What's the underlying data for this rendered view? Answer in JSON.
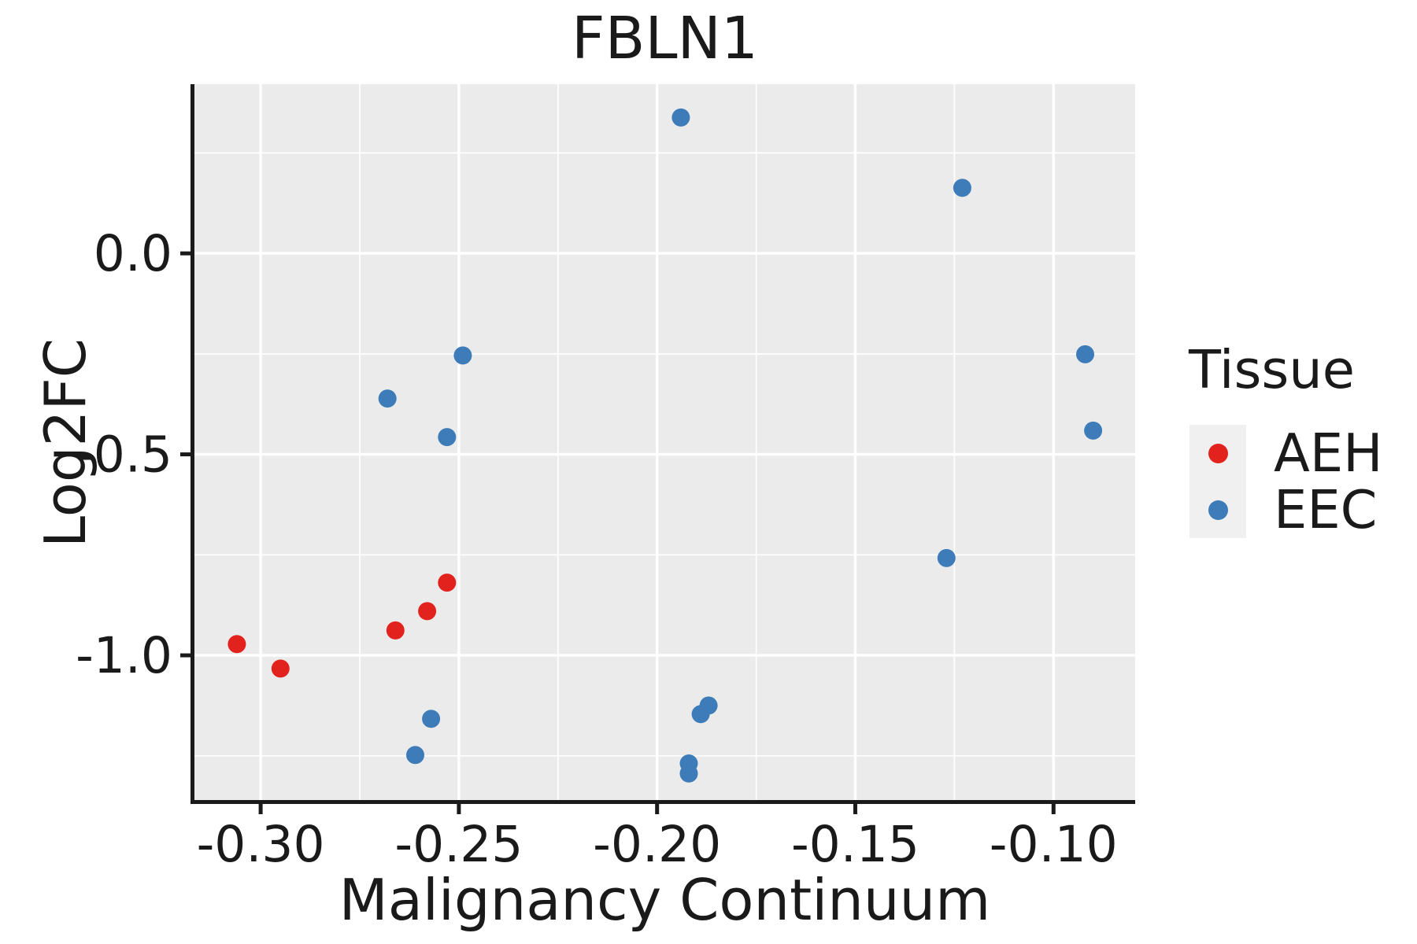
{
  "chart_data": {
    "type": "scatter",
    "title": "FBLN1",
    "xlabel": "Malignancy Continuum",
    "ylabel": "Log2FC",
    "xlim": [
      -0.3167,
      -0.0794
    ],
    "ylim": [
      -1.36,
      0.421
    ],
    "x_ticks": {
      "values": [
        -0.3,
        -0.25,
        -0.2,
        -0.15,
        -0.1
      ],
      "labels": [
        "-0.30",
        "-0.25",
        "-0.20",
        "-0.15",
        "-0.10"
      ]
    },
    "y_ticks": {
      "values": [
        0.0,
        -0.5,
        -1.0
      ],
      "labels": [
        "0.0",
        "-0.5",
        "-1.0"
      ]
    },
    "x_minor_ticks": [
      -0.275,
      -0.225,
      -0.175,
      -0.125
    ],
    "y_minor_ticks": [
      0.25,
      -0.25,
      -0.75,
      -1.25
    ],
    "grid": "white major and minor gridlines on gray panel",
    "legend": {
      "title": "Tissue",
      "position": "right"
    },
    "colors": {
      "panel_background": "#ebebeb",
      "gridline": "#ffffff",
      "axis_line": "#1a1a1a",
      "tick_label": "#1a1a1a",
      "legend_key_background": "#f0f0f0",
      "aeh": "#e2231d",
      "eec": "#3d7cb8"
    },
    "series": [
      {
        "name": "AEH",
        "color": "#e2231d",
        "points": [
          [
            -0.306,
            -0.972
          ],
          [
            -0.295,
            -1.033
          ],
          [
            -0.266,
            -0.938
          ],
          [
            -0.258,
            -0.89
          ],
          [
            -0.253,
            -0.819
          ]
        ]
      },
      {
        "name": "EEC",
        "color": "#3d7cb8",
        "points": [
          [
            -0.194,
            0.338
          ],
          [
            -0.123,
            0.163
          ],
          [
            -0.249,
            -0.254
          ],
          [
            -0.268,
            -0.361
          ],
          [
            -0.253,
            -0.457
          ],
          [
            -0.092,
            -0.251
          ],
          [
            -0.09,
            -0.441
          ],
          [
            -0.127,
            -0.758
          ],
          [
            -0.257,
            -1.158
          ],
          [
            -0.261,
            -1.248
          ],
          [
            -0.187,
            -1.125
          ],
          [
            -0.189,
            -1.146
          ],
          [
            -0.192,
            -1.269
          ],
          [
            -0.192,
            -1.294
          ]
        ]
      }
    ]
  }
}
